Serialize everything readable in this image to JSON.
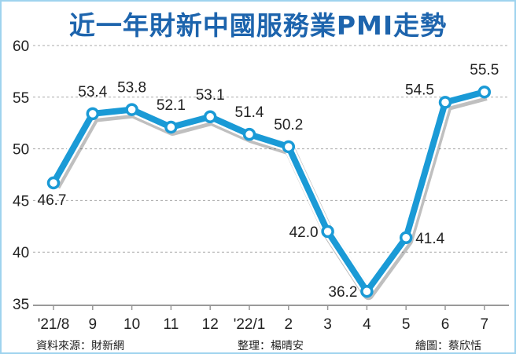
{
  "chart_data": {
    "type": "line",
    "title": "近一年財新中國服務業PMI走勢",
    "categories": [
      "'21/8",
      "9",
      "10",
      "11",
      "12",
      "'22/1",
      "2",
      "3",
      "4",
      "5",
      "6",
      "7"
    ],
    "values": [
      46.7,
      53.4,
      53.8,
      52.1,
      53.1,
      51.4,
      50.2,
      42.0,
      36.2,
      41.4,
      54.5,
      55.5
    ],
    "data_labels": [
      "46.7",
      "53.4",
      "53.8",
      "52.1",
      "53.1",
      "51.4",
      "50.2",
      "42.0",
      "36.2",
      "41.4",
      "54.5",
      "55.5"
    ],
    "ylim": [
      35,
      60
    ],
    "yticks": [
      "35",
      "40",
      "45",
      "50",
      "55",
      "60"
    ],
    "grid": true,
    "line_color": "#1a9ad6",
    "title_color": "#1d64ad"
  },
  "footer": {
    "source": "資料來源：財新網",
    "editor": "整理：楊晴安",
    "artist": "繪圖：蔡欣恬"
  }
}
